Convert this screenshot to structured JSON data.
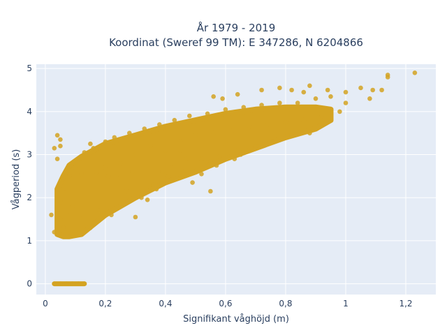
{
  "chart_data": {
    "type": "scatter",
    "title": "År 1979 - 2019",
    "subtitle": "Koordinat (Sweref 99 TM): E 347286, N 6204866",
    "xlabel": "Signifikant våghöjd (m)",
    "ylabel": "Vågperiod (s)",
    "xlim": [
      -0.03,
      1.3
    ],
    "ylim": [
      -0.25,
      5.1
    ],
    "x_ticks": [
      0,
      0.2,
      0.4,
      0.6,
      0.8,
      1,
      1.2
    ],
    "x_tick_labels": [
      "0",
      "0,2",
      "0,4",
      "0,6",
      "0,8",
      "1",
      "1,2"
    ],
    "y_ticks": [
      0,
      1,
      2,
      3,
      4,
      5
    ],
    "y_tick_labels": [
      "0",
      "1",
      "2",
      "3",
      "4",
      "5"
    ],
    "grid": true,
    "colors": {
      "marker": "#d4a322",
      "plot_bg": "#e5ecf6",
      "grid": "#ffffff"
    },
    "series": [
      {
        "points": [
          [
            0.03,
            0
          ],
          [
            0.05,
            0
          ],
          [
            0.07,
            0
          ],
          [
            0.09,
            0
          ],
          [
            0.11,
            0
          ],
          [
            0.13,
            0
          ],
          [
            0.02,
            1.6
          ],
          [
            0.03,
            1.2
          ],
          [
            0.03,
            3.15
          ],
          [
            0.04,
            2.9
          ],
          [
            0.04,
            3.45
          ],
          [
            0.05,
            3.35
          ],
          [
            0.05,
            3.2
          ],
          [
            0.05,
            1.9
          ],
          [
            0.05,
            1.5
          ],
          [
            0.06,
            1.3
          ],
          [
            0.06,
            2.2
          ],
          [
            0.07,
            1.6
          ],
          [
            0.08,
            2.5
          ],
          [
            0.08,
            1.1
          ],
          [
            0.09,
            1.8
          ],
          [
            0.1,
            2.7
          ],
          [
            0.1,
            1.2
          ],
          [
            0.11,
            2.9
          ],
          [
            0.12,
            1.5
          ],
          [
            0.13,
            3.05
          ],
          [
            0.14,
            2.2
          ],
          [
            0.15,
            1.3
          ],
          [
            0.16,
            3.15
          ],
          [
            0.17,
            2.6
          ],
          [
            0.18,
            1.7
          ],
          [
            0.2,
            3.3
          ],
          [
            0.21,
            2.5
          ],
          [
            0.22,
            1.6
          ],
          [
            0.23,
            3.4
          ],
          [
            0.25,
            2.8
          ],
          [
            0.26,
            1.9
          ],
          [
            0.28,
            3.5
          ],
          [
            0.3,
            3.0
          ],
          [
            0.31,
            2.1
          ],
          [
            0.33,
            3.6
          ],
          [
            0.35,
            3.2
          ],
          [
            0.36,
            2.3
          ],
          [
            0.38,
            3.7
          ],
          [
            0.4,
            3.1
          ],
          [
            0.41,
            2.5
          ],
          [
            0.43,
            3.8
          ],
          [
            0.45,
            3.3
          ],
          [
            0.46,
            2.6
          ],
          [
            0.48,
            3.9
          ],
          [
            0.5,
            3.45
          ],
          [
            0.52,
            2.9
          ],
          [
            0.54,
            3.95
          ],
          [
            0.56,
            3.5
          ],
          [
            0.58,
            2.95
          ],
          [
            0.6,
            4.05
          ],
          [
            0.62,
            3.55
          ],
          [
            0.64,
            3.1
          ],
          [
            0.66,
            4.1
          ],
          [
            0.68,
            3.65
          ],
          [
            0.7,
            3.2
          ],
          [
            0.72,
            4.15
          ],
          [
            0.74,
            3.7
          ],
          [
            0.76,
            3.3
          ],
          [
            0.78,
            4.2
          ],
          [
            0.8,
            3.75
          ],
          [
            0.82,
            3.45
          ],
          [
            0.84,
            4.2
          ],
          [
            0.86,
            3.8
          ],
          [
            0.88,
            3.5
          ],
          [
            0.9,
            4.3
          ],
          [
            0.92,
            3.9
          ],
          [
            0.95,
            4.35
          ],
          [
            0.98,
            4.0
          ],
          [
            1.0,
            4.2
          ],
          [
            0.56,
            4.35
          ],
          [
            0.59,
            4.3
          ],
          [
            0.64,
            4.4
          ],
          [
            0.72,
            4.5
          ],
          [
            0.78,
            4.55
          ],
          [
            0.82,
            4.5
          ],
          [
            0.86,
            4.45
          ],
          [
            0.88,
            4.6
          ],
          [
            0.94,
            4.5
          ],
          [
            1.0,
            4.45
          ],
          [
            1.05,
            4.55
          ],
          [
            1.08,
            4.3
          ],
          [
            1.09,
            4.5
          ],
          [
            1.12,
            4.5
          ],
          [
            1.14,
            4.85
          ],
          [
            1.14,
            4.8
          ],
          [
            1.23,
            4.9
          ],
          [
            0.2,
            2.7
          ],
          [
            0.24,
            2.45
          ],
          [
            0.27,
            2.15
          ],
          [
            0.29,
            2.6
          ],
          [
            0.32,
            2.0
          ],
          [
            0.34,
            1.95
          ],
          [
            0.37,
            2.2
          ],
          [
            0.39,
            2.6
          ],
          [
            0.42,
            2.7
          ],
          [
            0.44,
            2.45
          ],
          [
            0.47,
            2.9
          ],
          [
            0.49,
            2.35
          ],
          [
            0.52,
            2.55
          ],
          [
            0.55,
            2.85
          ],
          [
            0.57,
            2.75
          ],
          [
            0.6,
            3.25
          ],
          [
            0.63,
            2.9
          ],
          [
            0.65,
            3.0
          ],
          [
            0.67,
            3.1
          ],
          [
            0.55,
            2.15
          ],
          [
            0.45,
            3.1
          ],
          [
            0.3,
            1.55
          ],
          [
            0.15,
            3.25
          ],
          [
            0.12,
            2.55
          ]
        ]
      }
    ]
  }
}
